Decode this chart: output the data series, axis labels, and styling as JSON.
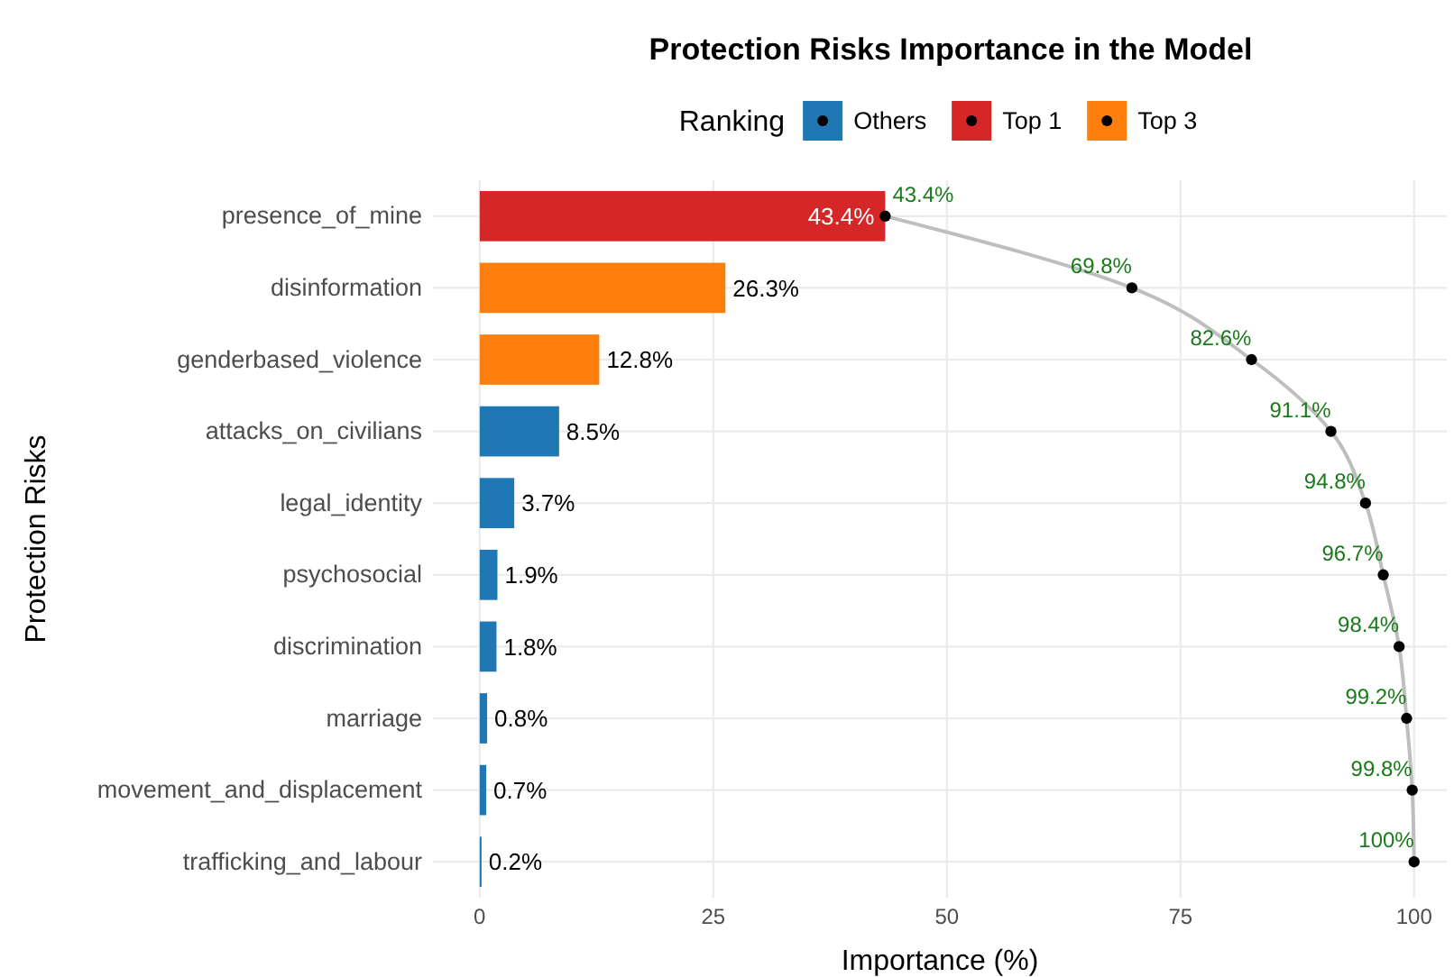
{
  "chart_data": {
    "type": "bar",
    "title": "Protection Risks Importance in the Model",
    "xlabel": "Importance (%)",
    "ylabel": "Protection Risks",
    "orientation": "horizontal",
    "legend_title": "Ranking",
    "legend": "top",
    "categories": [
      "presence_of_mine",
      "disinformation",
      "genderbased_violence",
      "attacks_on_civilians",
      "legal_identity",
      "psychosocial",
      "discrimination",
      "marriage",
      "movement_and_displacement",
      "trafficking_and_labour"
    ],
    "xlim": [
      -5,
      103.5
    ],
    "xticks": [
      0,
      25,
      50,
      75,
      100
    ],
    "grid": true,
    "series": [
      {
        "name": "Others",
        "color": "#1f77b4",
        "values": [
          null,
          null,
          null,
          8.5,
          3.7,
          1.9,
          1.8,
          0.8,
          0.7,
          0.2
        ],
        "value_labels": [
          null,
          null,
          null,
          "8.5%",
          "3.7%",
          "1.9%",
          "1.8%",
          "0.8%",
          "0.7%",
          "0.2%"
        ]
      },
      {
        "name": "Top 1",
        "color": "#d62728",
        "values": [
          43.4,
          null,
          null,
          null,
          null,
          null,
          null,
          null,
          null,
          null
        ],
        "value_labels": [
          "43.4%",
          null,
          null,
          null,
          null,
          null,
          null,
          null,
          null,
          null
        ]
      },
      {
        "name": "Top 3",
        "color": "#ff7f0e",
        "values": [
          null,
          26.3,
          12.8,
          null,
          null,
          null,
          null,
          null,
          null,
          null
        ],
        "value_labels": [
          null,
          "26.3%",
          "12.8%",
          null,
          null,
          null,
          null,
          null,
          null,
          null
        ]
      },
      {
        "type": "line",
        "color": "#bebebe",
        "values": [
          43.4,
          69.8,
          82.6,
          91.1,
          94.8,
          96.7,
          98.4,
          99.2,
          99.8,
          100
        ]
      },
      {
        "type": "scatter",
        "color": "#000000",
        "marker": "circle",
        "values": [
          43.4,
          69.8,
          82.6,
          91.1,
          94.8,
          96.7,
          98.4,
          99.2,
          99.8,
          100
        ],
        "value_labels": [
          "43.4%",
          "69.8%",
          "82.6%",
          "91.1%",
          "94.8%",
          "96.7%",
          "98.4%",
          "99.2%",
          "99.8%",
          "100%"
        ]
      }
    ]
  }
}
